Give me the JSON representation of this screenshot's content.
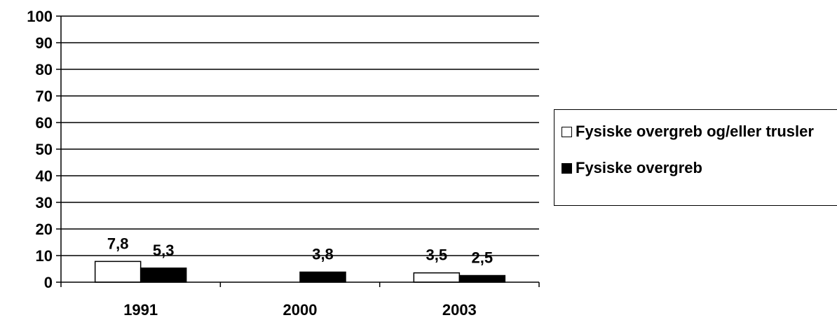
{
  "chart_data": {
    "type": "bar",
    "categories": [
      "1991",
      "2000",
      "2003"
    ],
    "series": [
      {
        "name": "Fysiske overgreb og/eller trusler",
        "values": [
          7.8,
          null,
          3.5
        ],
        "labels": [
          "7,8",
          "",
          "3,5"
        ],
        "color": "#ffffff"
      },
      {
        "name": "Fysiske overgreb",
        "values": [
          5.3,
          3.8,
          2.5
        ],
        "labels": [
          "5,3",
          "3,8",
          "2,5"
        ],
        "color": "#000000"
      }
    ],
    "y_ticks": [
      "0",
      "10",
      "20",
      "30",
      "40",
      "50",
      "60",
      "70",
      "80",
      "90",
      "100"
    ],
    "ylim": [
      0,
      100
    ],
    "grid": true,
    "legend_position": "right"
  }
}
